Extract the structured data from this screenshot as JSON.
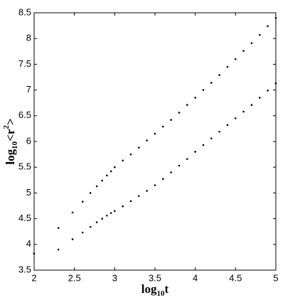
{
  "chart_data": {
    "type": "scatter",
    "xlabel": {
      "base": "log",
      "sub": "10",
      "rest": "t"
    },
    "ylabel": {
      "base": "log",
      "sub": "10",
      "rest": "<r",
      "sup": "2",
      "end": ">"
    },
    "x": [
      2,
      2.301,
      2.477,
      2.602,
      2.699,
      2.778,
      2.845,
      2.903,
      2.954,
      3,
      3.1,
      3.2,
      3.3,
      3.4,
      3.5,
      3.6,
      3.7,
      3.8,
      3.9,
      4,
      4.1,
      4.2,
      4.3,
      4.4,
      4.5,
      4.6,
      4.7,
      4.8,
      4.9,
      5
    ],
    "series": [
      {
        "color": "#000000",
        "values": [
          3.82,
          4.32,
          4.62,
          4.83,
          5.0,
          5.13,
          5.24,
          5.34,
          5.42,
          5.5,
          5.63,
          5.75,
          5.88,
          6.02,
          6.15,
          6.29,
          6.42,
          6.56,
          6.71,
          6.85,
          7.0,
          7.14,
          7.29,
          7.45,
          7.6,
          7.76,
          7.91,
          8.07,
          8.24,
          8.4
        ]
      },
      {
        "color": "#000000",
        "values": [
          null,
          3.9,
          4.1,
          4.23,
          4.34,
          4.43,
          4.5,
          4.56,
          4.61,
          4.65,
          4.74,
          4.84,
          4.94,
          5.04,
          5.15,
          5.27,
          5.4,
          5.53,
          5.66,
          5.8,
          5.93,
          6.06,
          6.19,
          6.32,
          6.45,
          6.58,
          6.71,
          6.85,
          6.99,
          7.13
        ]
      }
    ],
    "xlim": [
      2,
      5
    ],
    "xticks": [
      2,
      2.5,
      3,
      3.5,
      4,
      4.5,
      5
    ],
    "ylim": [
      3.5,
      8.5
    ],
    "yticks": [
      3.5,
      4,
      4.5,
      5,
      5.5,
      6,
      6.5,
      7,
      7.5,
      8,
      8.5
    ]
  }
}
